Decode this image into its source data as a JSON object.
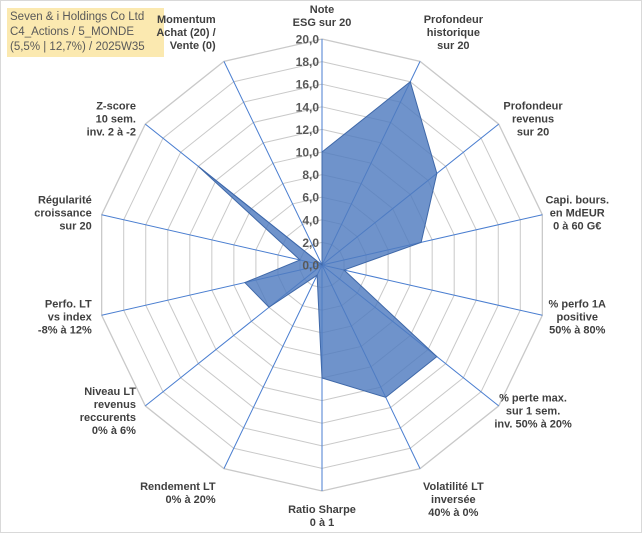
{
  "title": {
    "line1": "Seven & i Holdings Co Ltd",
    "line2": "C4_Actions / 5_MONDE",
    "line3": "(5,5% | 12,7%) / 2025W35"
  },
  "colors": {
    "fill": "#4f7bbf",
    "grid": "#c9c9c9",
    "spoke": "#4a7ed0",
    "title_bg": "#fbe9b0"
  },
  "chart_data": {
    "type": "radar",
    "rmin": 0,
    "rmax": 20,
    "tick_step": 2,
    "tick_labels": [
      "0,0",
      "2,0",
      "4,0",
      "6,0",
      "8,0",
      "10,0",
      "12,0",
      "14,0",
      "16,0",
      "18,0",
      "20,0"
    ],
    "axes": [
      {
        "label": [
          "Note",
          "ESG sur 20"
        ],
        "value": 10
      },
      {
        "label": [
          "Profondeur",
          "historique",
          "sur 20"
        ],
        "value": 18
      },
      {
        "label": [
          "Profondeur",
          "revenus",
          "sur 20"
        ],
        "value": 13
      },
      {
        "label": [
          "Capi. bours.",
          "en MdEUR",
          "0 à 60 G€"
        ],
        "value": 9
      },
      {
        "label": [
          "% perfo 1A",
          "positive",
          "50% à 80%"
        ],
        "value": 2
      },
      {
        "label": [
          "% perte max.",
          "sur 1 sem.",
          "inv. 50% à 20%"
        ],
        "value": 13
      },
      {
        "label": [
          "Volatilité LT",
          "inversée",
          "40% à 0%"
        ],
        "value": 13
      },
      {
        "label": [
          "Ratio Sharpe",
          "0 à 1"
        ],
        "value": 10
      },
      {
        "label": [
          "Rendement LT",
          "0% à 20%"
        ],
        "value": 1
      },
      {
        "label": [
          "Niveau LT",
          "revenus",
          "reccurents",
          "0% à 6%"
        ],
        "value": 6
      },
      {
        "label": [
          "Perfo. LT",
          "vs index",
          "-8% à 12%"
        ],
        "value": 7
      },
      {
        "label": [
          "Régularité",
          "croissance",
          "sur 20"
        ],
        "value": 2
      },
      {
        "label": [
          "Z-score",
          "10 sem.",
          "inv. 2 à -2"
        ],
        "value": 14
      },
      {
        "label": [
          "Momentum",
          "Achat (20) /",
          "Vente (0)"
        ],
        "value": 0
      }
    ]
  }
}
